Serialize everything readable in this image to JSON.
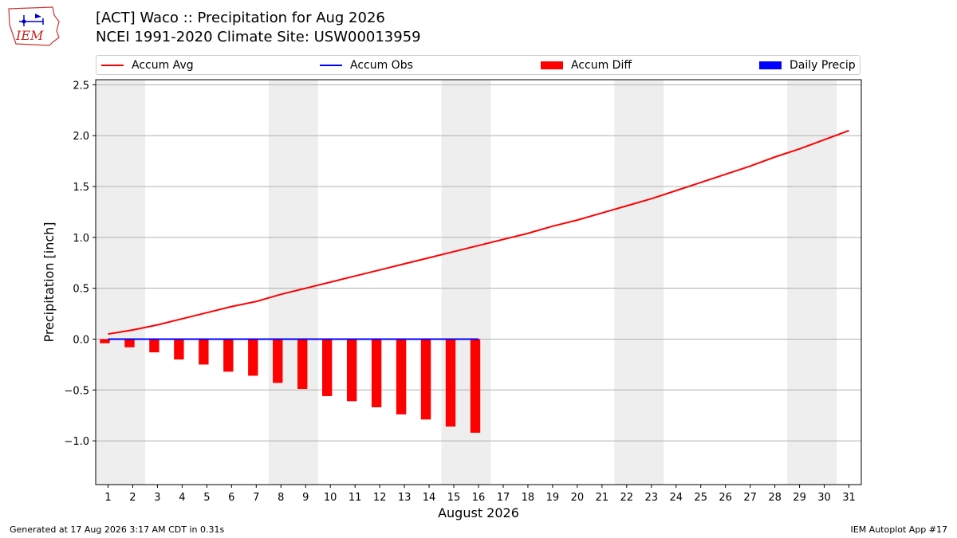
{
  "header": {
    "logo_text": "IEM",
    "title_line1": "[ACT] Waco :: Precipitation for Aug 2026",
    "title_line2": "NCEI 1991-2020 Climate Site: USW00013959"
  },
  "footer": {
    "left": "Generated at 17 Aug 2026 3:17 AM CDT in 0.31s",
    "right": "IEM Autoplot App #17"
  },
  "colors": {
    "accum_avg": "#ff0000",
    "accum_obs": "#0000ff",
    "accum_diff": "#ff0000",
    "daily_precip": "#0000ff",
    "weekend_band": "#eeeeee",
    "grid": "#b0b0b0"
  },
  "chart_data": {
    "type": "line",
    "xlabel": "August 2026",
    "ylabel": "Precipitation [inch]",
    "ylim": [
      -1.43,
      2.55
    ],
    "xlim": [
      0.5,
      31.5
    ],
    "yticks": [
      -1.0,
      -0.5,
      0.0,
      0.5,
      1.0,
      1.5,
      2.0,
      2.5
    ],
    "ytick_labels": [
      "−1.0",
      "−0.5",
      "0.0",
      "0.5",
      "1.0",
      "1.5",
      "2.0",
      "2.5"
    ],
    "x": [
      1,
      2,
      3,
      4,
      5,
      6,
      7,
      8,
      9,
      10,
      11,
      12,
      13,
      14,
      15,
      16,
      17,
      18,
      19,
      20,
      21,
      22,
      23,
      24,
      25,
      26,
      27,
      28,
      29,
      30,
      31
    ],
    "xtick_labels": [
      "1",
      "2",
      "3",
      "4",
      "5",
      "6",
      "7",
      "8",
      "9",
      "10",
      "11",
      "12",
      "13",
      "14",
      "15",
      "16",
      "17",
      "18",
      "19",
      "20",
      "21",
      "22",
      "23",
      "24",
      "25",
      "26",
      "27",
      "28",
      "29",
      "30",
      "31"
    ],
    "grid": "horizontal",
    "legend_position": "top",
    "weekend_bands": [
      [
        1,
        2
      ],
      [
        8,
        9
      ],
      [
        15,
        16
      ],
      [
        22,
        23
      ],
      [
        29,
        30
      ]
    ],
    "series": [
      {
        "name": "Accum Avg",
        "kind": "line",
        "x": [
          1,
          2,
          3,
          4,
          5,
          6,
          7,
          8,
          9,
          10,
          11,
          12,
          13,
          14,
          15,
          16,
          17,
          18,
          19,
          20,
          21,
          22,
          23,
          24,
          25,
          26,
          27,
          28,
          29,
          30,
          31
        ],
        "values": [
          0.05,
          0.09,
          0.14,
          0.2,
          0.26,
          0.32,
          0.37,
          0.44,
          0.5,
          0.56,
          0.62,
          0.68,
          0.74,
          0.8,
          0.86,
          0.92,
          0.98,
          1.04,
          1.11,
          1.17,
          1.24,
          1.31,
          1.38,
          1.46,
          1.54,
          1.62,
          1.7,
          1.79,
          1.87,
          1.96,
          2.05
        ]
      },
      {
        "name": "Accum Obs",
        "kind": "line",
        "x": [
          1,
          2,
          3,
          4,
          5,
          6,
          7,
          8,
          9,
          10,
          11,
          12,
          13,
          14,
          15,
          16
        ],
        "values": [
          0,
          0,
          0,
          0,
          0,
          0,
          0,
          0,
          0,
          0,
          0,
          0,
          0,
          0,
          0,
          0
        ]
      },
      {
        "name": "Accum Diff",
        "kind": "bar",
        "x": [
          1,
          2,
          3,
          4,
          5,
          6,
          7,
          8,
          9,
          10,
          11,
          12,
          13,
          14,
          15,
          16
        ],
        "values": [
          -0.04,
          -0.08,
          -0.13,
          -0.2,
          -0.25,
          -0.32,
          -0.36,
          -0.43,
          -0.49,
          -0.56,
          -0.61,
          -0.67,
          -0.74,
          -0.79,
          -0.86,
          -0.92
        ]
      },
      {
        "name": "Daily Precip",
        "kind": "bar",
        "x": [],
        "values": []
      }
    ]
  }
}
